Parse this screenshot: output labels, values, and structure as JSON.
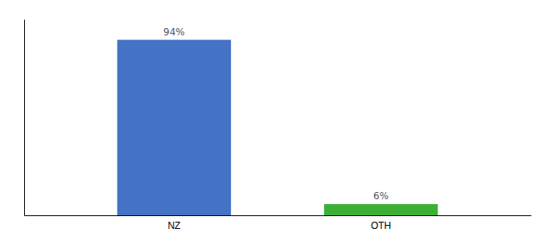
{
  "chart_data": {
    "type": "bar",
    "categories": [
      "NZ",
      "OTH"
    ],
    "values": [
      94,
      6
    ],
    "value_labels": [
      "94%",
      "6%"
    ],
    "colors": [
      "#4472c4",
      "#3cb034"
    ],
    "ylim": [
      0,
      105
    ],
    "data_labels": true,
    "tick_labels": "x"
  }
}
